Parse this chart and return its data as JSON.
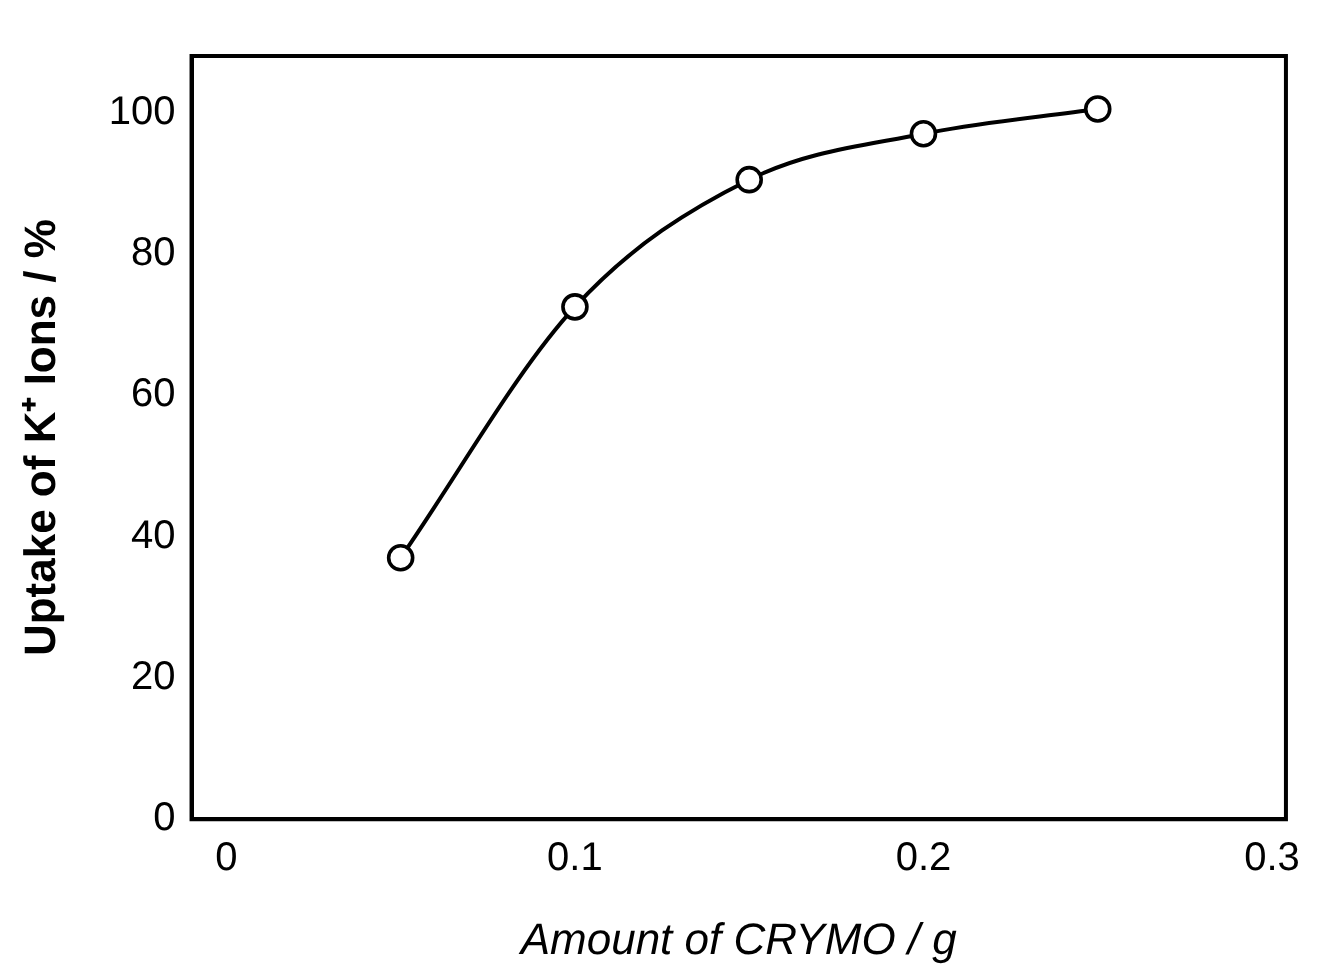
{
  "chart_data": {
    "type": "line",
    "xlabel": "Amount of CRYMO / g",
    "ylabel": "Uptake of K⁺ Ions / %",
    "x": [
      0.05,
      0.1,
      0.15,
      0.2,
      0.25
    ],
    "series": [
      {
        "color": "#000000",
        "values": [
          37,
          72.5,
          90.5,
          97,
          100.5
        ]
      }
    ],
    "xlim": [
      -0.01,
      0.304
    ],
    "ylim": [
      0,
      108
    ],
    "xticks": [
      0,
      0.1,
      0.2,
      0.3
    ],
    "yticks": [
      0,
      20,
      40,
      60,
      80,
      100
    ],
    "grid": false,
    "legend": false,
    "marker": "circle",
    "line_style": "solid"
  }
}
